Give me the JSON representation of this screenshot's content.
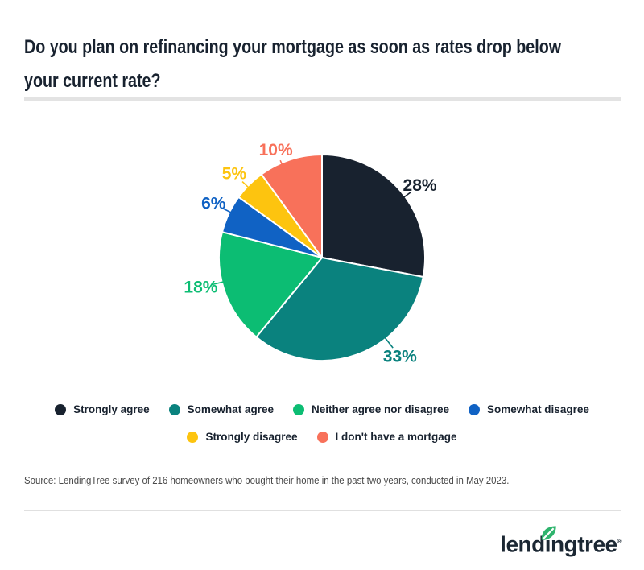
{
  "header": {
    "title_line1": "Do you plan on refinancing your mortgage as soon as rates drop below",
    "title_line2": "your current rate?"
  },
  "chart_data": {
    "type": "pie",
    "title": "Do you plan on refinancing your mortgage as soon as rates drop below your current rate?",
    "categories": [
      "Strongly agree",
      "Somewhat agree",
      "Neither agree nor disagree",
      "Somewhat disagree",
      "Strongly disagree",
      "I don't have a mortgage"
    ],
    "values": [
      28,
      33,
      18,
      6,
      5,
      10
    ],
    "value_labels": [
      "28%",
      "33%",
      "18%",
      "6%",
      "5%",
      "10%"
    ],
    "colors": [
      "#18222f",
      "#0a827e",
      "#0cbd73",
      "#1062c4",
      "#fdc40f",
      "#f8715a"
    ],
    "start_angle_deg": 0,
    "direction": "clockwise",
    "slice_gap_color": "#ffffff",
    "legend_position": "bottom"
  },
  "legend": {
    "items": [
      {
        "label": "Strongly agree",
        "color": "#18222f"
      },
      {
        "label": "Somewhat agree",
        "color": "#0a827e"
      },
      {
        "label": "Neither agree nor disagree",
        "color": "#0cbd73"
      },
      {
        "label": "Somewhat disagree",
        "color": "#1062c4"
      },
      {
        "label": "Strongly disagree",
        "color": "#fdc40f"
      },
      {
        "label": "I don't have a mortgage",
        "color": "#f8715a"
      }
    ]
  },
  "source": {
    "text": "Source: LendingTree survey of 216 homeowners who bought their home in the past two years, conducted in May 2023."
  },
  "footer": {
    "logo_text": "lendingtree",
    "registered_mark": "®",
    "logo_color": "#1b2733",
    "leaf_color": "#2eb46d"
  }
}
